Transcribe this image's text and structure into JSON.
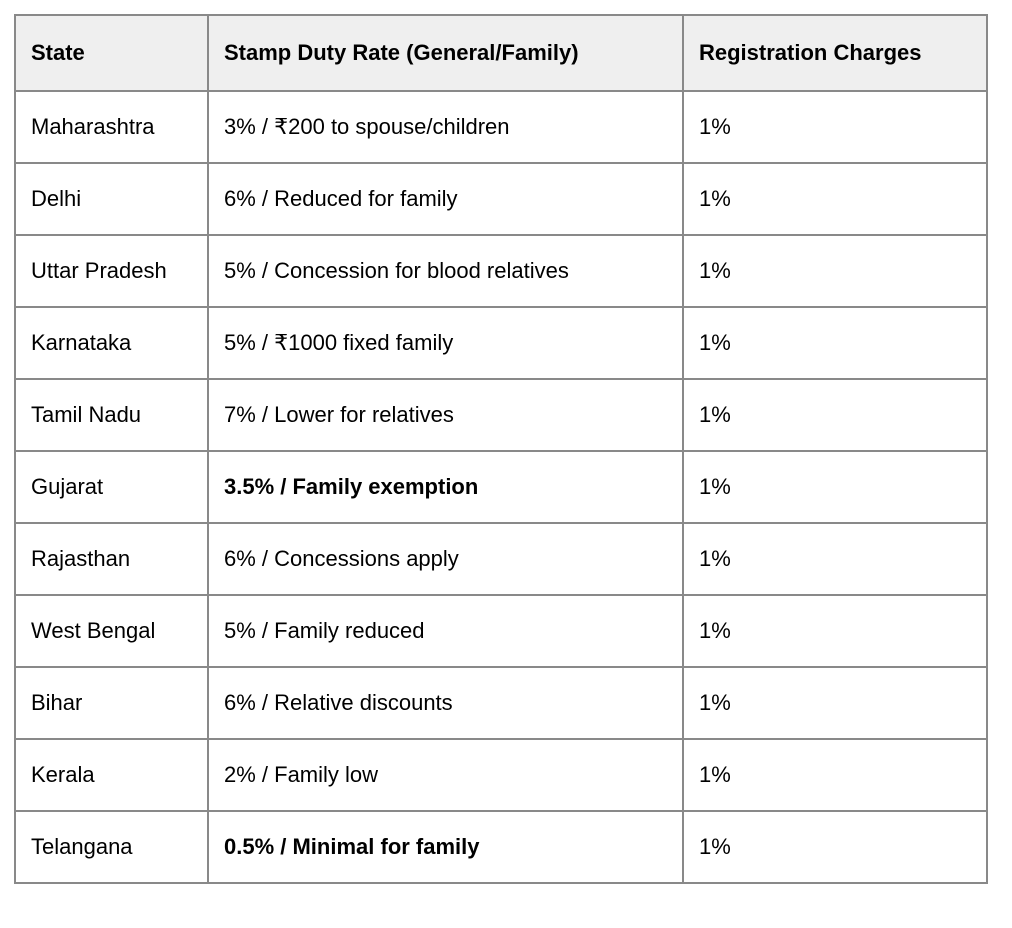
{
  "colors": {
    "header_bg": "#efefef",
    "border": "#898989",
    "text": "#000000",
    "row_bg": "#ffffff"
  },
  "table": {
    "columns": [
      {
        "key": "state",
        "label": "State"
      },
      {
        "key": "rate",
        "label": "Stamp Duty Rate (General/Family)"
      },
      {
        "key": "registration",
        "label": "Registration Charges"
      }
    ],
    "rows": [
      {
        "state": "Maharashtra",
        "rate": "3% / ₹200 to spouse/children",
        "rate_bold": false,
        "registration": "1%"
      },
      {
        "state": "Delhi",
        "rate": "6% / Reduced for family",
        "rate_bold": false,
        "registration": "1%"
      },
      {
        "state": "Uttar Pradesh",
        "rate": "5% / Concession for blood relatives",
        "rate_bold": false,
        "registration": "1%"
      },
      {
        "state": "Karnataka",
        "rate": "5% / ₹1000 fixed family",
        "rate_bold": false,
        "registration": "1%"
      },
      {
        "state": "Tamil Nadu",
        "rate": "7% / Lower for relatives",
        "rate_bold": false,
        "registration": "1%"
      },
      {
        "state": "Gujarat",
        "rate": "3.5% / Family exemption",
        "rate_bold": true,
        "registration": "1%"
      },
      {
        "state": "Rajasthan",
        "rate": "6% / Concessions apply",
        "rate_bold": false,
        "registration": "1%"
      },
      {
        "state": "West Bengal",
        "rate": "5% / Family reduced",
        "rate_bold": false,
        "registration": "1%"
      },
      {
        "state": "Bihar",
        "rate": "6% / Relative discounts",
        "rate_bold": false,
        "registration": "1%"
      },
      {
        "state": "Kerala",
        "rate": "2% / Family low",
        "rate_bold": false,
        "registration": "1%"
      },
      {
        "state": "Telangana",
        "rate": "0.5% / Minimal for family",
        "rate_bold": true,
        "registration": "1%"
      }
    ]
  }
}
